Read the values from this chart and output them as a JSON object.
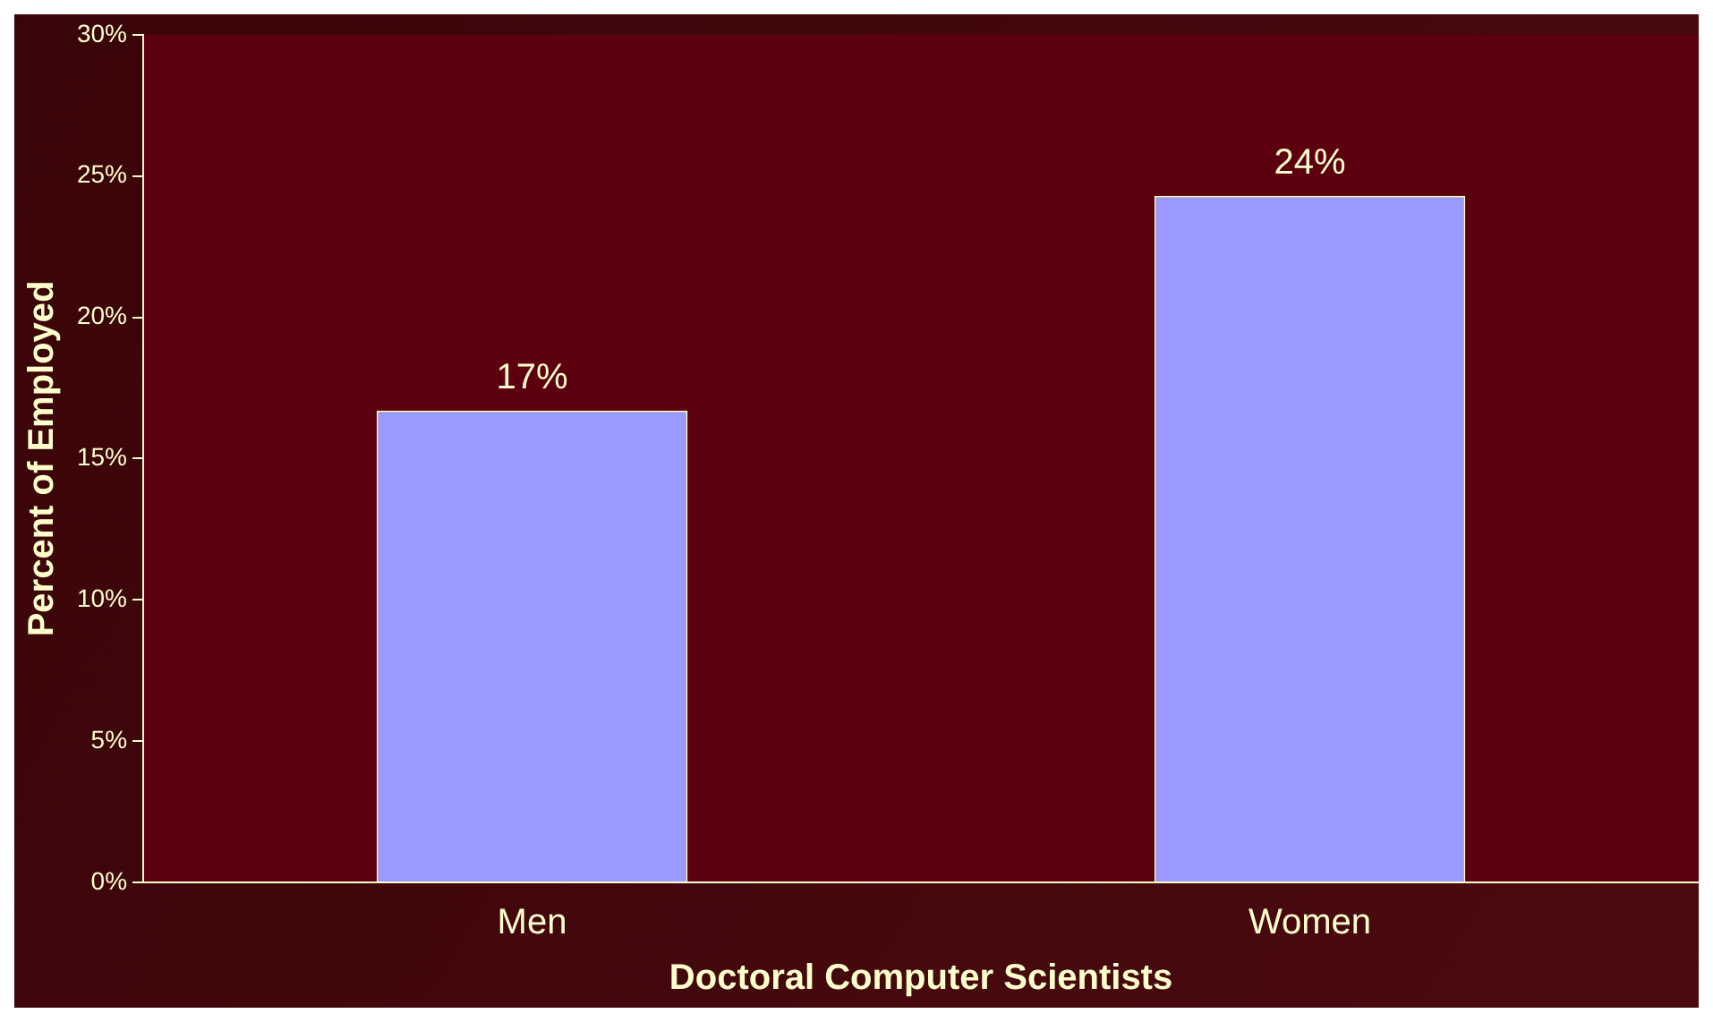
{
  "chart_data": {
    "type": "bar",
    "xlabel": "Doctoral Computer Scientists",
    "ylabel": "Percent of Employed",
    "categories": [
      "Men",
      "Women"
    ],
    "values": [
      16.7,
      24.3
    ],
    "value_labels": [
      "17%",
      "24%"
    ],
    "color": "#9999ff",
    "ylim": [
      0,
      30
    ],
    "yticks": [
      {
        "value": 0,
        "label": "0%"
      },
      {
        "value": 5,
        "label": "5%"
      },
      {
        "value": 10,
        "label": "10%"
      },
      {
        "value": 15,
        "label": "15%"
      },
      {
        "value": 20,
        "label": "20%"
      },
      {
        "value": 25,
        "label": "25%"
      },
      {
        "value": 30,
        "label": "30%"
      }
    ],
    "grid": false,
    "legend": false
  }
}
